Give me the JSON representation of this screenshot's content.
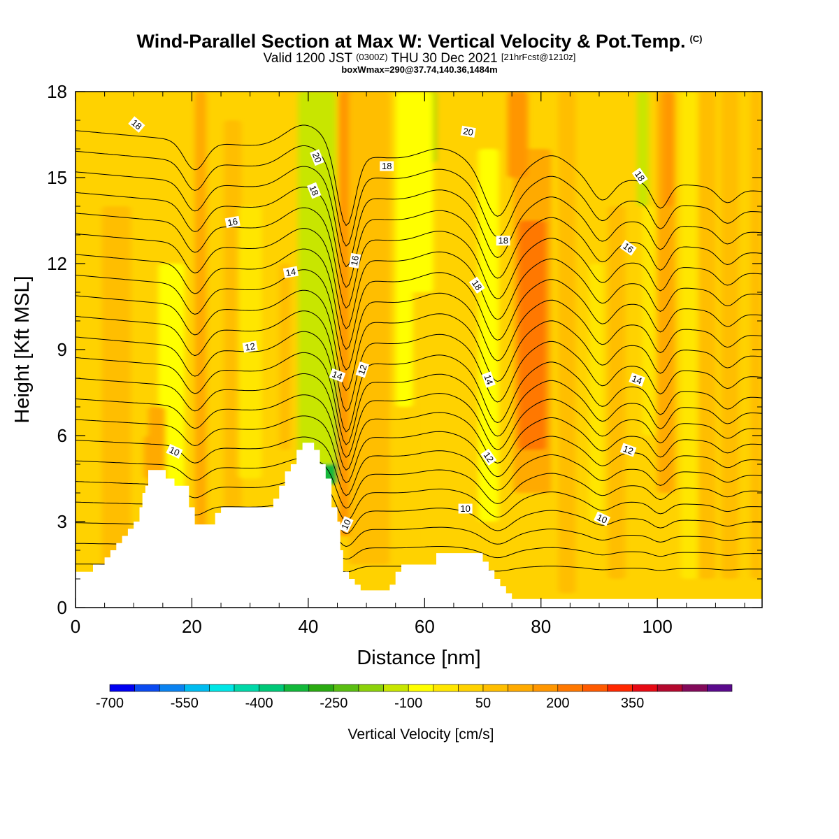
{
  "header": {
    "title_main": "Wind-Parallel Section at Max W: Vertical Velocity & Pot.Temp.",
    "title_mark": "(C)",
    "valid_a": "Valid 1200 JST",
    "valid_b": "(0300Z)",
    "valid_c": "THU 30 Dec 2021",
    "valid_d": "[21hrFcst@1210z]",
    "box_info": "boxWmax=290@37.74,140.36,1484m"
  },
  "chart_data": {
    "type": "heatmap",
    "xlabel": "Distance [nm]",
    "ylabel": "Height [Kft MSL]",
    "xlim": [
      0,
      118
    ],
    "ylim": [
      0,
      18
    ],
    "x_ticks": [
      "0",
      "20",
      "40",
      "60",
      "80",
      "100"
    ],
    "y_ticks": [
      "0",
      "3",
      "6",
      "9",
      "12",
      "15",
      "18"
    ],
    "colorbar": {
      "label": "Vertical Velocity [cm/s]",
      "tick_labels": [
        "-700",
        "-550",
        "-400",
        "-250",
        "-100",
        "50",
        "200",
        "350"
      ],
      "tick_values": [
        -700,
        -550,
        -400,
        -250,
        -100,
        50,
        200,
        350
      ],
      "bin_min": -700,
      "bin_width": 50,
      "colors": [
        "#0000f0",
        "#0a4af0",
        "#0a82f0",
        "#00bcf0",
        "#00e6e6",
        "#00d8a8",
        "#00c878",
        "#12b83a",
        "#2aaa12",
        "#5abe12",
        "#8cd20a",
        "#c8e600",
        "#ffff00",
        "#ffe600",
        "#ffd200",
        "#ffbe00",
        "#ffaa00",
        "#ff9600",
        "#ff7800",
        "#ff5a00",
        "#ff2800",
        "#e60a14",
        "#b4082e",
        "#820a5a",
        "#5a0a8c"
      ]
    },
    "background_w": 25,
    "bands": [
      {
        "x": 16.5,
        "w": 2.5,
        "v": -180,
        "y0": 2.5,
        "y1": 10.5
      },
      {
        "x": 16.5,
        "w": 4.5,
        "v": -90,
        "y0": 1.5,
        "y1": 12
      },
      {
        "x": 14,
        "w": 3,
        "v": 110,
        "y0": 4,
        "y1": 7
      },
      {
        "x": 13,
        "w": 2.5,
        "v": 140,
        "y0": 4.5,
        "y1": 6
      },
      {
        "x": 7,
        "w": 5,
        "v": 75,
        "y0": 1.3,
        "y1": 14
      },
      {
        "x": 21.5,
        "w": 2,
        "v": 125,
        "y0": 2.5,
        "y1": 18
      },
      {
        "x": 27,
        "w": 3,
        "v": 75,
        "y0": 3.5,
        "y1": 17
      },
      {
        "x": 30,
        "w": 4,
        "v": -40,
        "y0": 4.5,
        "y1": 14
      },
      {
        "x": 36,
        "w": 2,
        "v": 70,
        "y0": 5.5,
        "y1": 12
      },
      {
        "x": 43,
        "w": 4,
        "v": -320,
        "y0": 4.3,
        "y1": 8.5
      },
      {
        "x": 42.8,
        "w": 3.2,
        "v": -260,
        "y0": 8.5,
        "y1": 13
      },
      {
        "x": 42.2,
        "w": 2.6,
        "v": -230,
        "y0": 13,
        "y1": 18
      },
      {
        "x": 41.5,
        "w": 6.5,
        "v": -120,
        "y0": 5,
        "y1": 18
      },
      {
        "x": 47.5,
        "w": 4,
        "v": 340,
        "y0": 4,
        "y1": 9
      },
      {
        "x": 47.5,
        "w": 3,
        "v": 380,
        "y0": 9,
        "y1": 14
      },
      {
        "x": 46.8,
        "w": 2.6,
        "v": 320,
        "y0": 14,
        "y1": 18
      },
      {
        "x": 48.5,
        "w": 6.5,
        "v": 160,
        "y0": 2.5,
        "y1": 18
      },
      {
        "x": 50.5,
        "w": 7,
        "v": 85,
        "y0": 1.5,
        "y1": 18
      },
      {
        "x": 56.5,
        "w": 3,
        "v": -70,
        "y0": 7,
        "y1": 18
      },
      {
        "x": 60,
        "w": 4,
        "v": -190,
        "y0": 15.5,
        "y1": 18
      },
      {
        "x": 59,
        "w": 5,
        "v": -100,
        "y0": 11,
        "y1": 18
      },
      {
        "x": 61,
        "w": 4,
        "v": 20,
        "y0": 2,
        "y1": 9
      },
      {
        "x": 71.5,
        "w": 1.8,
        "v": -130,
        "y0": 6,
        "y1": 10.5
      },
      {
        "x": 71,
        "w": 3.5,
        "v": -60,
        "y0": 3,
        "y1": 16
      },
      {
        "x": 67,
        "w": 4,
        "v": 20,
        "y0": 12,
        "y1": 18
      },
      {
        "x": 78.5,
        "w": 6.5,
        "v": 140,
        "y0": 4,
        "y1": 16
      },
      {
        "x": 78.5,
        "w": 4.8,
        "v": 205,
        "y0": 5.5,
        "y1": 13.5
      },
      {
        "x": 78.5,
        "w": 3.6,
        "v": 245,
        "y0": 6.5,
        "y1": 12
      },
      {
        "x": 76,
        "w": 3.5,
        "v": 180,
        "y0": 15,
        "y1": 18
      },
      {
        "x": 84.5,
        "w": 3,
        "v": 75,
        "y0": 0.5,
        "y1": 18
      },
      {
        "x": 89.5,
        "w": 2.5,
        "v": -30,
        "y0": 3,
        "y1": 12
      },
      {
        "x": 93,
        "w": 3,
        "v": 75,
        "y0": 1,
        "y1": 14
      },
      {
        "x": 97.5,
        "w": 2,
        "v": -120,
        "y0": 14,
        "y1": 18
      },
      {
        "x": 98.5,
        "w": 2.2,
        "v": -50,
        "y0": 6,
        "y1": 14
      },
      {
        "x": 101.5,
        "w": 3,
        "v": 120,
        "y0": 4,
        "y1": 18
      },
      {
        "x": 102,
        "w": 1.8,
        "v": 170,
        "y0": 14,
        "y1": 18
      },
      {
        "x": 105.5,
        "w": 3,
        "v": -20,
        "y0": 1,
        "y1": 18
      },
      {
        "x": 108.5,
        "w": 3,
        "v": 80,
        "y0": 1,
        "y1": 18
      },
      {
        "x": 112.5,
        "w": 3,
        "v": 70,
        "y0": 1,
        "y1": 18
      },
      {
        "x": 117,
        "w": 2,
        "v": 60,
        "y0": 1,
        "y1": 18
      }
    ],
    "terrain": [
      [
        0,
        1.25
      ],
      [
        3,
        1.25
      ],
      [
        3,
        1.5
      ],
      [
        5,
        1.5
      ],
      [
        5,
        1.75
      ],
      [
        6,
        1.75
      ],
      [
        6,
        2
      ],
      [
        7,
        2
      ],
      [
        7,
        2.25
      ],
      [
        8,
        2.25
      ],
      [
        8,
        2.5
      ],
      [
        9,
        2.5
      ],
      [
        9,
        2.75
      ],
      [
        10,
        2.75
      ],
      [
        10,
        3
      ],
      [
        11,
        3
      ],
      [
        11,
        3.5
      ],
      [
        11.5,
        3.5
      ],
      [
        11.5,
        4
      ],
      [
        12,
        4
      ],
      [
        12,
        4.25
      ],
      [
        12.5,
        4.25
      ],
      [
        12.5,
        4.8
      ],
      [
        15.5,
        4.8
      ],
      [
        15.5,
        4.5
      ],
      [
        17,
        4.5
      ],
      [
        17,
        4.25
      ],
      [
        19.5,
        4.25
      ],
      [
        19.5,
        3.5
      ],
      [
        20.5,
        3.5
      ],
      [
        20.5,
        2.9
      ],
      [
        24,
        2.9
      ],
      [
        24,
        3.3
      ],
      [
        25,
        3.3
      ],
      [
        25,
        3.5
      ],
      [
        34,
        3.5
      ],
      [
        34,
        3.8
      ],
      [
        35,
        3.8
      ],
      [
        35,
        4.25
      ],
      [
        36,
        4.25
      ],
      [
        36,
        4.75
      ],
      [
        37,
        4.75
      ],
      [
        37,
        5
      ],
      [
        38,
        5
      ],
      [
        38,
        5.5
      ],
      [
        39,
        5.5
      ],
      [
        39,
        5.75
      ],
      [
        41,
        5.75
      ],
      [
        41,
        5.5
      ],
      [
        42,
        5.5
      ],
      [
        42,
        5
      ],
      [
        43,
        5
      ],
      [
        43,
        4.5
      ],
      [
        44,
        4.5
      ],
      [
        44,
        3.5
      ],
      [
        45,
        3.5
      ],
      [
        45,
        3
      ],
      [
        45.5,
        3
      ],
      [
        45.5,
        2
      ],
      [
        46,
        2
      ],
      [
        46,
        1.25
      ],
      [
        47,
        1.25
      ],
      [
        47,
        1
      ],
      [
        48,
        1
      ],
      [
        48,
        0.8
      ],
      [
        49,
        0.8
      ],
      [
        49,
        0.6
      ],
      [
        54,
        0.6
      ],
      [
        54,
        0.8
      ],
      [
        55,
        0.8
      ],
      [
        55,
        1.25
      ],
      [
        56,
        1.25
      ],
      [
        56,
        1.5
      ],
      [
        62,
        1.5
      ],
      [
        62,
        1.9
      ],
      [
        70,
        1.9
      ],
      [
        70,
        1.6
      ],
      [
        71,
        1.6
      ],
      [
        71,
        1.3
      ],
      [
        72,
        1.3
      ],
      [
        72,
        1
      ],
      [
        73,
        1
      ],
      [
        73,
        0.75
      ],
      [
        74,
        0.75
      ],
      [
        74,
        0.5
      ],
      [
        75,
        0.5
      ],
      [
        75,
        0.3
      ],
      [
        118,
        0.3
      ],
      [
        118,
        0
      ]
    ],
    "contours": {
      "levels": [
        1,
        2,
        3,
        4,
        5,
        6,
        7,
        8,
        9,
        10,
        11,
        12,
        13,
        14,
        15,
        16,
        17,
        18,
        19,
        20,
        21,
        22
      ],
      "base_height": 0.8,
      "spacing": 0.72,
      "dips": [
        {
          "x": 20.5,
          "amp": 1.0,
          "w": 2.6
        },
        {
          "x": 46.5,
          "amp": 2.6,
          "w": 2.2
        },
        {
          "x": 72.5,
          "amp": 1.7,
          "w": 3.2
        },
        {
          "x": 90.5,
          "amp": 0.8,
          "w": 2.6
        },
        {
          "x": 100.5,
          "amp": 0.9,
          "w": 2
        },
        {
          "x": 112,
          "amp": 0.5,
          "w": 2.2
        }
      ],
      "bumps": [
        {
          "x": 39.5,
          "amp": 0.9,
          "w": 5
        },
        {
          "x": 63,
          "amp": 0.5,
          "w": 5
        },
        {
          "x": 82,
          "amp": 0.6,
          "w": 4
        }
      ],
      "slope": 0.018
    },
    "contour_labels": [
      {
        "text": "18",
        "x": 10.5,
        "y": 16.85,
        "angle": 40
      },
      {
        "text": "20",
        "x": 41.5,
        "y": 15.7,
        "angle": 68
      },
      {
        "text": "18",
        "x": 41,
        "y": 14.55,
        "angle": 68
      },
      {
        "text": "18",
        "x": 53.5,
        "y": 15.4,
        "angle": 0
      },
      {
        "text": "20",
        "x": 67.5,
        "y": 16.6,
        "angle": 10
      },
      {
        "text": "18",
        "x": 97,
        "y": 15.05,
        "angle": 55
      },
      {
        "text": "16",
        "x": 27,
        "y": 13.45,
        "angle": -10
      },
      {
        "text": "16",
        "x": 48,
        "y": 12.1,
        "angle": -80
      },
      {
        "text": "18",
        "x": 73.5,
        "y": 12.8,
        "angle": 0
      },
      {
        "text": "16",
        "x": 95,
        "y": 12.55,
        "angle": 35
      },
      {
        "text": "14",
        "x": 37,
        "y": 11.7,
        "angle": -10
      },
      {
        "text": "18",
        "x": 69,
        "y": 11.25,
        "angle": 55
      },
      {
        "text": "12",
        "x": 30,
        "y": 9.1,
        "angle": -10
      },
      {
        "text": "14",
        "x": 45,
        "y": 8.1,
        "angle": 20
      },
      {
        "text": "12",
        "x": 49.3,
        "y": 8.3,
        "angle": -72
      },
      {
        "text": "14",
        "x": 71,
        "y": 7.95,
        "angle": 70
      },
      {
        "text": "14",
        "x": 96.5,
        "y": 7.95,
        "angle": 20
      },
      {
        "text": "10",
        "x": 17,
        "y": 5.45,
        "angle": 25
      },
      {
        "text": "12",
        "x": 71,
        "y": 5.25,
        "angle": 55
      },
      {
        "text": "12",
        "x": 95,
        "y": 5.5,
        "angle": 20
      },
      {
        "text": "10",
        "x": 67,
        "y": 3.45,
        "angle": 0
      },
      {
        "text": "10",
        "x": 90.5,
        "y": 3.1,
        "angle": 25
      },
      {
        "text": "10",
        "x": 46.5,
        "y": 2.9,
        "angle": -65
      }
    ]
  }
}
